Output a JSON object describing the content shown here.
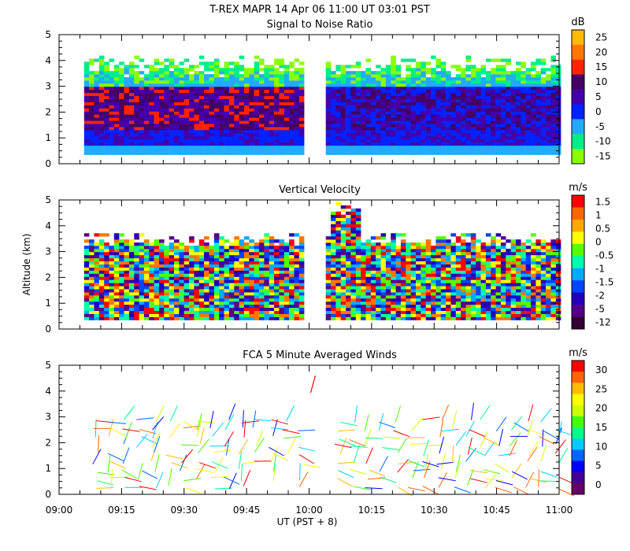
{
  "figure_title": "T-REX  MAPR 14 Apr 06   11:00 UT  03:01  PST",
  "xaxis": {
    "label": "UT  (PST + 8)",
    "ticks": [
      "09:00",
      "09:15",
      "09:30",
      "09:45",
      "10:00",
      "10:15",
      "10:30",
      "10:45",
      "11:00"
    ]
  },
  "chart_data": [
    {
      "type": "heatmap",
      "title": "Signal to Noise Ratio",
      "ylabel": "",
      "ylim": [
        0,
        5
      ],
      "yticks": [
        "0",
        "1",
        "2",
        "3",
        "4",
        "5"
      ],
      "xrange_minutes": [
        0,
        120
      ],
      "data_gap_minutes": [
        58,
        64
      ],
      "colorbar": {
        "unit": "dB",
        "labels": [
          "25",
          "20",
          "15",
          "10",
          "5",
          "0",
          "-5",
          "-10",
          "-15"
        ],
        "colors": [
          "#ffbb00",
          "#ff7700",
          "#ff2200",
          "#440066",
          "#4400aa",
          "#0022ff",
          "#22aaff",
          "#00ee88",
          "#88ff00"
        ]
      }
    },
    {
      "type": "heatmap",
      "title": "Vertical Velocity",
      "ylabel": "Altitude (km)",
      "ylim": [
        0,
        5
      ],
      "yticks": [
        "0",
        "1",
        "2",
        "3",
        "4",
        "5"
      ],
      "xrange_minutes": [
        0,
        120
      ],
      "data_gap_minutes": [
        58,
        64
      ],
      "colorbar": {
        "unit": "m/s",
        "labels": [
          "1.5",
          "1",
          "0.5",
          "0",
          "-0.5",
          "-1",
          "-1.5",
          "-2",
          "-5",
          "-12"
        ],
        "colors": [
          "#ff0000",
          "#ff6600",
          "#ffaa00",
          "#ffff00",
          "#55ff00",
          "#00ffaa",
          "#00aaff",
          "#0044ff",
          "#2200bb",
          "#550088",
          "#330033"
        ]
      }
    },
    {
      "type": "scatter",
      "title": "FCA 5 Minute Averaged Winds",
      "ylabel": "",
      "ylim": [
        0,
        5
      ],
      "yticks": [
        "0",
        "1",
        "2",
        "3",
        "4",
        "5"
      ],
      "xrange_minutes": [
        0,
        120
      ],
      "data_gap_minutes": [
        58,
        64
      ],
      "colorbar": {
        "unit": "m/s",
        "labels": [
          "30",
          "25",
          "20",
          "15",
          "10",
          "5",
          "0"
        ],
        "colors": [
          "#ff0000",
          "#ff6600",
          "#ffbb00",
          "#ffff00",
          "#ccff00",
          "#44ff00",
          "#00ff88",
          "#00ccff",
          "#0066ff",
          "#0000ff",
          "#440099",
          "#660066"
        ]
      }
    }
  ]
}
